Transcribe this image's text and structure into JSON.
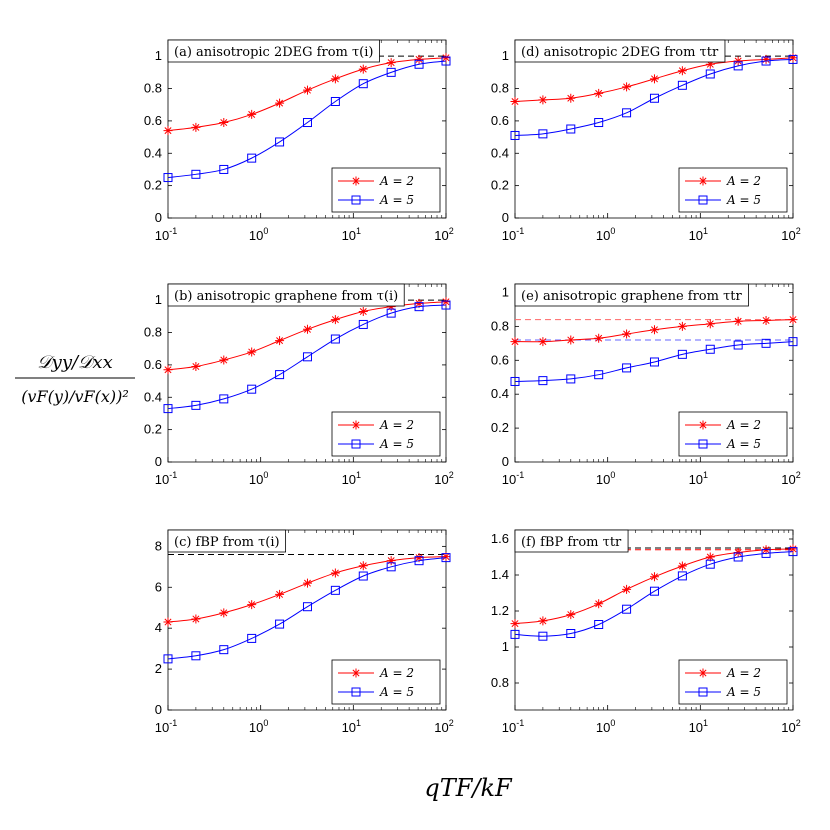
{
  "figure": {
    "ylabel_numerator": "𝒟yy/𝒟xx",
    "ylabel_denominator": "(vF(y)/vF(x))²",
    "xlabel": "qTF/kF"
  },
  "colors": {
    "A2": "#ff0000",
    "A5": "#0000ff",
    "ref": "#000000"
  },
  "chart_data": [
    {
      "id": "a",
      "type": "line",
      "title": "(a) anisotropic 2DEG from τ(i)",
      "xscale": "log",
      "xlim": [
        0.1,
        100
      ],
      "ylim": [
        0,
        1.1
      ],
      "yticks": [
        0,
        0.2,
        0.4,
        0.6,
        0.8,
        1
      ],
      "ytick_labels": [
        "0",
        "0.2",
        "0.4",
        "0.6",
        "0.8",
        "1"
      ],
      "xtick_labels": [
        "10-1",
        "100",
        "101",
        "102"
      ],
      "reference_lines": [
        {
          "y": 1.0,
          "color": "#000000",
          "style": "dashed"
        }
      ],
      "marker_x": [
        0.1,
        0.2,
        0.4,
        0.8,
        1.6,
        3.2,
        6.4,
        12.8,
        25.6,
        51.2,
        100
      ],
      "series": [
        {
          "name": "A = 2",
          "color": "#ff0000",
          "marker": "star",
          "values": [
            0.54,
            0.56,
            0.59,
            0.64,
            0.71,
            0.79,
            0.86,
            0.92,
            0.96,
            0.98,
            0.99
          ]
        },
        {
          "name": "A = 5",
          "color": "#0000ff",
          "marker": "square",
          "values": [
            0.25,
            0.27,
            0.3,
            0.37,
            0.47,
            0.59,
            0.72,
            0.83,
            0.9,
            0.95,
            0.97
          ]
        }
      ],
      "legend": "bottom-right"
    },
    {
      "id": "d",
      "type": "line",
      "title": "(d) anisotropic 2DEG from τtr",
      "xscale": "log",
      "xlim": [
        0.1,
        100
      ],
      "ylim": [
        0,
        1.1
      ],
      "yticks": [
        0,
        0.2,
        0.4,
        0.6,
        0.8,
        1
      ],
      "ytick_labels": [
        "0",
        "0.2",
        "0.4",
        "0.6",
        "0.8",
        "1"
      ],
      "xtick_labels": [
        "10-1",
        "100",
        "101",
        "102"
      ],
      "reference_lines": [
        {
          "y": 1.0,
          "color": "#000000",
          "style": "dashed"
        }
      ],
      "marker_x": [
        0.1,
        0.2,
        0.4,
        0.8,
        1.6,
        3.2,
        6.4,
        12.8,
        25.6,
        51.2,
        100
      ],
      "series": [
        {
          "name": "A = 2",
          "color": "#ff0000",
          "marker": "star",
          "values": [
            0.72,
            0.73,
            0.74,
            0.77,
            0.81,
            0.86,
            0.91,
            0.95,
            0.97,
            0.98,
            0.99
          ]
        },
        {
          "name": "A = 5",
          "color": "#0000ff",
          "marker": "square",
          "values": [
            0.51,
            0.52,
            0.55,
            0.59,
            0.65,
            0.74,
            0.82,
            0.89,
            0.94,
            0.97,
            0.98
          ]
        }
      ],
      "legend": "bottom-right"
    },
    {
      "id": "b",
      "type": "line",
      "title": "(b) anisotropic graphene from τ(i)",
      "xscale": "log",
      "xlim": [
        0.1,
        100
      ],
      "ylim": [
        0,
        1.1
      ],
      "yticks": [
        0,
        0.2,
        0.4,
        0.6,
        0.8,
        1
      ],
      "ytick_labels": [
        "0",
        "0.2",
        "0.4",
        "0.6",
        "0.8",
        "1"
      ],
      "xtick_labels": [
        "10-1",
        "100",
        "101",
        "102"
      ],
      "reference_lines": [
        {
          "y": 1.0,
          "color": "#000000",
          "style": "dashed"
        }
      ],
      "marker_x": [
        0.1,
        0.2,
        0.4,
        0.8,
        1.6,
        3.2,
        6.4,
        12.8,
        25.6,
        51.2,
        100
      ],
      "series": [
        {
          "name": "A = 2",
          "color": "#ff0000",
          "marker": "star",
          "values": [
            0.57,
            0.59,
            0.63,
            0.68,
            0.75,
            0.82,
            0.88,
            0.93,
            0.96,
            0.98,
            0.99
          ]
        },
        {
          "name": "A = 5",
          "color": "#0000ff",
          "marker": "square",
          "values": [
            0.33,
            0.35,
            0.39,
            0.45,
            0.54,
            0.65,
            0.76,
            0.85,
            0.92,
            0.96,
            0.97
          ]
        }
      ],
      "legend": "bottom-right"
    },
    {
      "id": "e",
      "type": "line",
      "title": "(e) anisotropic graphene from τtr",
      "xscale": "log",
      "xlim": [
        0.1,
        100
      ],
      "ylim": [
        0,
        1.05
      ],
      "yticks": [
        0,
        0.2,
        0.4,
        0.6,
        0.8,
        1
      ],
      "ytick_labels": [
        "0",
        "0.2",
        "0.4",
        "0.6",
        "0.8",
        "1"
      ],
      "xtick_labels": [
        "10-1",
        "100",
        "101",
        "102"
      ],
      "reference_lines": [
        {
          "y": 0.84,
          "color": "#ff6666",
          "style": "dashed"
        },
        {
          "y": 0.72,
          "color": "#6666ff",
          "style": "dashed"
        }
      ],
      "marker_x": [
        0.1,
        0.2,
        0.4,
        0.8,
        1.6,
        3.2,
        6.4,
        12.8,
        25.6,
        51.2,
        100
      ],
      "series": [
        {
          "name": "A = 2",
          "color": "#ff0000",
          "marker": "star",
          "values": [
            0.71,
            0.71,
            0.72,
            0.73,
            0.755,
            0.78,
            0.8,
            0.815,
            0.83,
            0.835,
            0.84
          ]
        },
        {
          "name": "A = 5",
          "color": "#0000ff",
          "marker": "square",
          "values": [
            0.475,
            0.48,
            0.49,
            0.515,
            0.555,
            0.59,
            0.635,
            0.665,
            0.69,
            0.7,
            0.71
          ]
        }
      ],
      "legend": "bottom-right"
    },
    {
      "id": "c",
      "type": "line",
      "title": "(c) fBP from τ(i)",
      "xscale": "log",
      "xlim": [
        0.1,
        100
      ],
      "ylim": [
        0,
        8.8
      ],
      "yticks": [
        0,
        2,
        4,
        6,
        8
      ],
      "ytick_labels": [
        "0",
        "2",
        "4",
        "6",
        "8"
      ],
      "xtick_labels": [
        "10-1",
        "100",
        "101",
        "102"
      ],
      "reference_lines": [
        {
          "y": 7.6,
          "color": "#000000",
          "style": "dashed"
        }
      ],
      "marker_x": [
        0.1,
        0.2,
        0.4,
        0.8,
        1.6,
        3.2,
        6.4,
        12.8,
        25.6,
        51.2,
        100
      ],
      "series": [
        {
          "name": "A = 2",
          "color": "#ff0000",
          "marker": "star",
          "values": [
            4.3,
            4.45,
            4.75,
            5.15,
            5.65,
            6.2,
            6.7,
            7.05,
            7.3,
            7.45,
            7.5
          ]
        },
        {
          "name": "A = 5",
          "color": "#0000ff",
          "marker": "square",
          "values": [
            2.5,
            2.65,
            2.95,
            3.5,
            4.2,
            5.05,
            5.85,
            6.55,
            7.0,
            7.3,
            7.45
          ]
        }
      ],
      "legend": "bottom-right"
    },
    {
      "id": "f",
      "type": "line",
      "title": "(f) fBP from τtr",
      "xscale": "log",
      "xlim": [
        0.1,
        100
      ],
      "ylim": [
        0.65,
        1.65
      ],
      "yticks": [
        0.8,
        1.0,
        1.2,
        1.4,
        1.6
      ],
      "ytick_labels": [
        "0.8",
        "1",
        "1.2",
        "1.4",
        "1.6"
      ],
      "xtick_labels": [
        "10-1",
        "100",
        "101",
        "102"
      ],
      "reference_lines": [
        {
          "y": 1.55,
          "color": "#000000",
          "style": "dashed"
        },
        {
          "y": 1.54,
          "color": "#ff0000",
          "style": "dashed"
        }
      ],
      "marker_x": [
        0.1,
        0.2,
        0.4,
        0.8,
        1.6,
        3.2,
        6.4,
        12.8,
        25.6,
        51.2,
        100
      ],
      "series": [
        {
          "name": "A = 2",
          "color": "#ff0000",
          "marker": "star",
          "values": [
            1.13,
            1.145,
            1.18,
            1.24,
            1.32,
            1.39,
            1.45,
            1.5,
            1.525,
            1.54,
            1.545
          ]
        },
        {
          "name": "A = 5",
          "color": "#0000ff",
          "marker": "square",
          "values": [
            1.07,
            1.06,
            1.075,
            1.125,
            1.21,
            1.31,
            1.395,
            1.46,
            1.5,
            1.52,
            1.53
          ]
        }
      ],
      "legend": "bottom-right"
    }
  ]
}
